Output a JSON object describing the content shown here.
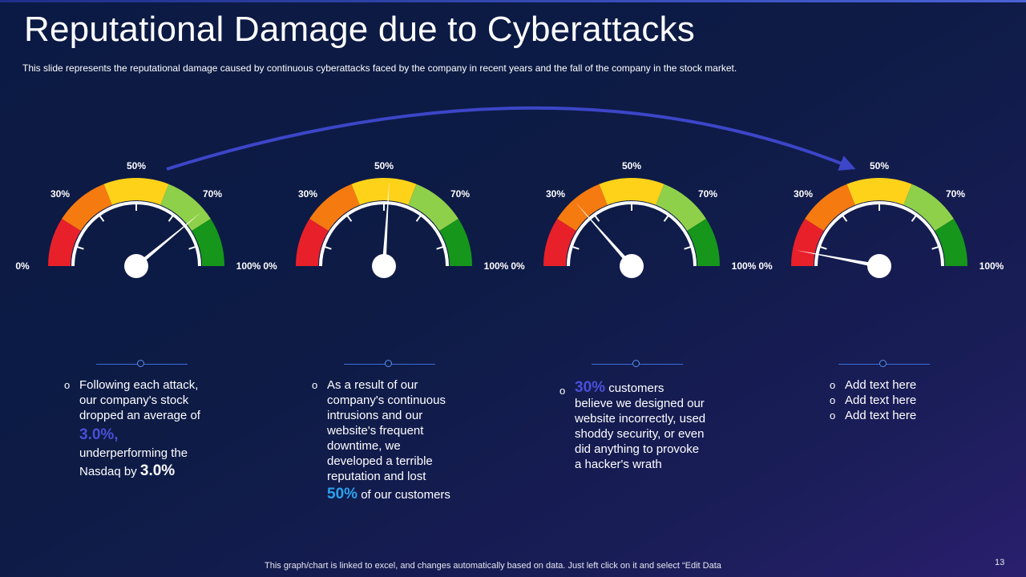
{
  "slide": {
    "title": "Reputational Damage due to Cyberattacks",
    "subtitle": "This slide represents the reputational damage caused by continuous cyberattacks faced by the company in recent years and the fall of the company in the stock market.",
    "footer": "This graph/chart is linked to excel,  and changes automatically based on data. Just left click on it and select “Edit Data",
    "page_number": "13"
  },
  "gauge_labels": [
    "0%",
    "30%",
    "50%",
    "70%",
    "100%"
  ],
  "colors": {
    "band_red": "#e8202a",
    "band_orange": "#f57a10",
    "band_yellow": "#ffd21a",
    "band_lightgreen": "#8fd04a",
    "band_green": "#16961a",
    "connector_arrow": "#3d45c8",
    "needle": "#ffffff"
  },
  "gauges": [
    {
      "value": 78
    },
    {
      "value": 52
    },
    {
      "value": 27
    },
    {
      "value": 6
    }
  ],
  "texts": {
    "g1": {
      "bullet": "o",
      "line1": "Following each attack,",
      "line2": "our company's stock",
      "line3": "dropped an average of",
      "hl1": "3.0%,",
      "line4": "underperforming the",
      "line5": "Nasdaq by",
      "hl2": "3.0%"
    },
    "g2": {
      "bullet": "o",
      "line1": "As a result of our",
      "line2": "company's continuous",
      "line3": "intrusions  and our",
      "line4": "website's frequent",
      "line5": "downtime, we",
      "line6": "developed a terrible",
      "line7": "reputation and lost",
      "hl": "50%",
      "line8": "of our customers"
    },
    "g3": {
      "bullet": "o",
      "hl": "30%",
      "line1": "customers",
      "line2": "believe we designed our",
      "line3": "website incorrectly,  used",
      "line4": "shoddy security,  or even",
      "line5": "did anything  to provoke",
      "line6": "a hacker's wrath"
    },
    "g4": {
      "bullet": "o",
      "items": [
        "Add text here",
        "Add text here",
        "Add text here"
      ]
    }
  }
}
